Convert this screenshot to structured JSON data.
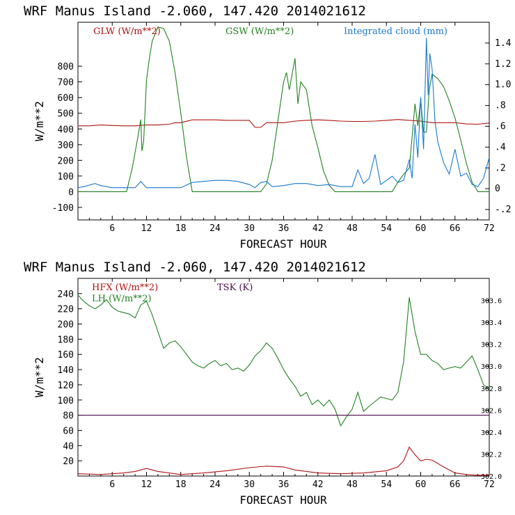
{
  "chart_data": [
    {
      "type": "line",
      "title": "WRF   Manus Island   -2.060, 147.420   2014021612",
      "xlabel": "FORECAST HOUR",
      "ylabel": "W/m**2",
      "xlim": [
        0,
        72
      ],
      "ylim": [
        -180,
        1080
      ],
      "xticks": [
        6,
        12,
        18,
        24,
        30,
        36,
        42,
        48,
        54,
        60,
        66,
        72
      ],
      "yticks": [
        -100,
        0,
        100,
        200,
        300,
        400,
        500,
        600,
        700,
        800
      ],
      "y2label": "",
      "y2lim": [
        -0.3,
        1.6
      ],
      "y2ticks": [
        "-.2",
        "0",
        ".2",
        ".4",
        ".6",
        ".8",
        "1.0",
        "1.2",
        "1.4"
      ],
      "y2tick_values": [
        -0.2,
        0,
        0.2,
        0.4,
        0.6,
        0.8,
        1.0,
        1.2,
        1.4
      ],
      "series": [
        {
          "name": "GLW (W/m**2)",
          "color": "#b01010",
          "axis": "left",
          "x": [
            0,
            2,
            4,
            6,
            8,
            10,
            12,
            14,
            16,
            17,
            18,
            20,
            22,
            24,
            26,
            28,
            30,
            31,
            32,
            33,
            34,
            36,
            38,
            40,
            42,
            44,
            46,
            48,
            50,
            52,
            54,
            56,
            58,
            60,
            62,
            64,
            66,
            68,
            70,
            72
          ],
          "values": [
            420,
            420,
            425,
            422,
            420,
            420,
            425,
            425,
            430,
            440,
            440,
            458,
            458,
            458,
            455,
            455,
            455,
            410,
            410,
            440,
            440,
            440,
            450,
            455,
            458,
            455,
            450,
            448,
            448,
            450,
            455,
            460,
            455,
            450,
            440,
            440,
            440,
            432,
            430,
            438
          ]
        },
        {
          "name": "GSW (W/m**2)",
          "color": "#208020",
          "axis": "left",
          "x": [
            0,
            8.5,
            9.5,
            10.5,
            11,
            11.2,
            11.5,
            12,
            12.5,
            13,
            14,
            15,
            16,
            17,
            18,
            19,
            20,
            21,
            22,
            30,
            32,
            33,
            34,
            35,
            36,
            36.5,
            37,
            38,
            38.5,
            39,
            40,
            41,
            42,
            43,
            44,
            45,
            48,
            55,
            56,
            57,
            58,
            58.5,
            59,
            59.5,
            60,
            60.5,
            61,
            61.5,
            62,
            63,
            64,
            65,
            66,
            67,
            68,
            69,
            70,
            72
          ],
          "values": [
            0,
            0,
            150,
            350,
            460,
            260,
            320,
            710,
            850,
            960,
            1050,
            1040,
            960,
            760,
            500,
            220,
            0,
            0,
            0,
            0,
            0,
            50,
            200,
            450,
            700,
            760,
            650,
            850,
            560,
            700,
            650,
            420,
            280,
            130,
            40,
            0,
            0,
            0,
            60,
            110,
            150,
            350,
            560,
            420,
            590,
            380,
            380,
            650,
            750,
            720,
            670,
            580,
            470,
            330,
            180,
            60,
            0,
            0
          ]
        },
        {
          "name": "Integrated cloud (mm)",
          "color": "#1878d0",
          "axis": "right",
          "x": [
            0,
            1,
            3,
            4,
            6,
            10,
            11,
            12,
            14,
            18,
            20,
            22,
            24,
            26,
            28,
            30,
            31,
            32,
            33,
            34,
            36,
            38,
            40,
            42,
            44,
            46,
            48,
            49,
            50,
            51,
            52,
            53,
            54,
            55,
            56,
            57,
            58,
            58.5,
            59,
            59.5,
            60,
            60.5,
            61,
            61.3,
            61.6,
            62,
            62.5,
            63,
            64,
            65,
            66,
            67,
            68,
            69,
            70,
            71,
            72
          ],
          "values": [
            0.01,
            0.02,
            0.05,
            0.03,
            0.01,
            0.01,
            0.07,
            0.01,
            0.01,
            0.01,
            0.06,
            0.07,
            0.08,
            0.08,
            0.07,
            0.04,
            0.01,
            0.06,
            0.07,
            0.02,
            0.03,
            0.05,
            0.05,
            0.03,
            0.04,
            0.02,
            0.02,
            0.18,
            0.05,
            0.1,
            0.33,
            0.04,
            0.08,
            0.12,
            0.06,
            0.08,
            0.28,
            0.1,
            0.62,
            0.3,
            0.88,
            0.38,
            1.45,
            0.9,
            1.3,
            1.15,
            0.65,
            0.45,
            0.25,
            0.14,
            0.38,
            0.12,
            0.15,
            0.04,
            0.02,
            0.1,
            0.3
          ]
        }
      ]
    },
    {
      "type": "line",
      "title": "WRF   Manus Island   -2.060, 147.420   2014021612",
      "xlabel": "FORECAST HOUR",
      "ylabel": "W/m**2",
      "xlim": [
        0,
        72
      ],
      "ylim": [
        0,
        260
      ],
      "xticks": [
        6,
        12,
        18,
        24,
        30,
        36,
        42,
        48,
        54,
        60,
        66,
        72
      ],
      "yticks": [
        20,
        40,
        60,
        80,
        100,
        120,
        140,
        160,
        180,
        200,
        220,
        240
      ],
      "y2label": "",
      "y2lim": [
        302.0,
        303.8
      ],
      "y2ticks": [
        "302.0",
        "302.2",
        "302.4",
        "302.6",
        "302.8",
        "303.0",
        "303.2",
        "303.4",
        "303.6"
      ],
      "y2tick_values": [
        302.0,
        302.2,
        302.4,
        302.6,
        302.8,
        303.0,
        303.2,
        303.4,
        303.6
      ],
      "series": [
        {
          "name": "HFX (W/m**2)",
          "color": "#b01010",
          "axis": "left",
          "x": [
            0,
            4,
            8,
            10,
            12,
            14,
            18,
            22,
            26,
            30,
            33,
            36,
            38,
            42,
            46,
            50,
            54,
            56,
            57,
            58,
            59,
            60,
            61,
            62,
            64,
            66,
            68,
            70,
            72
          ],
          "values": [
            3,
            2,
            4,
            6,
            10,
            6,
            2,
            4,
            7,
            11,
            13,
            12,
            8,
            4,
            3,
            4,
            7,
            12,
            20,
            38,
            28,
            20,
            22,
            21,
            12,
            4,
            2,
            1,
            1
          ],
          "legend_row": 1,
          "legend_col": 1
        },
        {
          "name": "LH (W/m**2)",
          "color": "#208020",
          "axis": "left",
          "x": [
            0,
            1,
            2,
            3,
            4,
            5,
            6,
            7,
            8,
            9,
            10,
            11,
            12,
            13,
            14,
            15,
            16,
            17,
            18,
            19,
            20,
            21,
            22,
            23,
            24,
            25,
            26,
            27,
            28,
            29,
            30,
            31,
            32,
            33,
            34,
            35,
            36,
            37,
            38,
            39,
            40,
            41,
            42,
            43,
            44,
            45,
            46,
            47,
            48,
            49,
            50,
            51,
            52,
            53,
            54,
            55,
            56,
            57,
            58,
            59,
            60,
            61,
            62,
            63,
            64,
            65,
            66,
            67,
            68,
            69,
            70,
            71,
            72
          ],
          "values": [
            238,
            230,
            224,
            220,
            225,
            232,
            222,
            217,
            215,
            213,
            208,
            225,
            230,
            212,
            190,
            168,
            175,
            178,
            170,
            160,
            150,
            145,
            142,
            148,
            152,
            145,
            148,
            140,
            142,
            138,
            146,
            158,
            165,
            175,
            168,
            155,
            140,
            128,
            118,
            105,
            110,
            94,
            100,
            92,
            100,
            88,
            66,
            78,
            88,
            110,
            85,
            92,
            98,
            104,
            102,
            100,
            110,
            150,
            235,
            190,
            160,
            160,
            152,
            148,
            140,
            142,
            144,
            142,
            150,
            158,
            140,
            120,
            115
          ],
          "legend_row": 2,
          "legend_col": 1
        },
        {
          "name": "TSK (K)",
          "color": "#4a0a4a",
          "axis": "left",
          "x": [
            0,
            72
          ],
          "values": [
            80,
            80
          ],
          "legend_row": 1,
          "legend_col": 2
        }
      ]
    }
  ]
}
